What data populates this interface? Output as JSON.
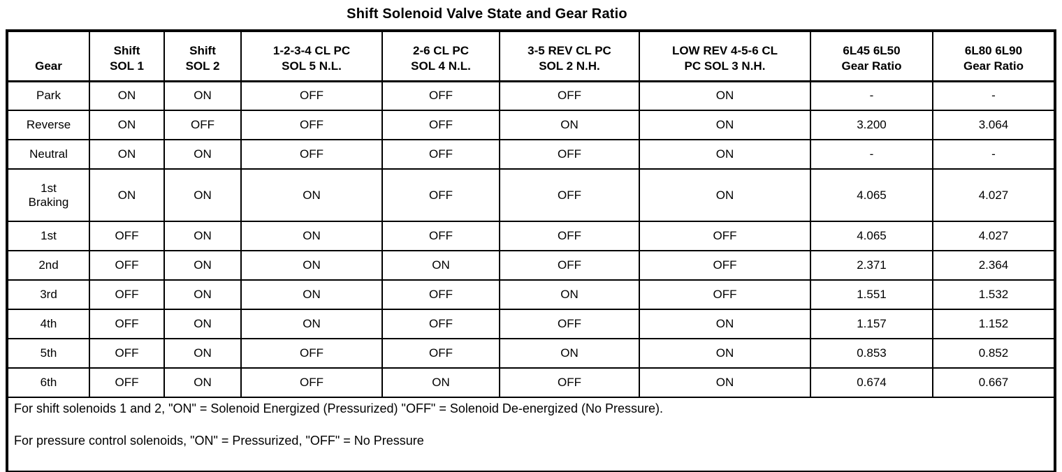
{
  "page": {
    "title": "Shift Solenoid Valve State and Gear Ratio",
    "background_color": "#ffffff",
    "text_color": "#000000",
    "border_color": "#000000"
  },
  "table": {
    "columns": [
      {
        "id": "gear",
        "label": "Gear"
      },
      {
        "id": "shift-sol-1",
        "label": "Shift\nSOL 1"
      },
      {
        "id": "shift-sol-2",
        "label": "Shift\nSOL 2"
      },
      {
        "id": "cl-pc-sol-5",
        "label": "1-2-3-4 CL PC\nSOL 5 N.L."
      },
      {
        "id": "cl-pc-sol-4",
        "label": "2-6 CL PC\nSOL 4 N.L."
      },
      {
        "id": "rev-cl-pc-sol-2",
        "label": "3-5 REV CL PC\nSOL 2 N.H."
      },
      {
        "id": "low-rev-pc-sol-3",
        "label": "LOW REV 4-5-6 CL\nPC SOL 3 N.H."
      },
      {
        "id": "ratio-6l45-6l50",
        "label": "6L45 6L50\nGear Ratio"
      },
      {
        "id": "ratio-6l80-6l90",
        "label": "6L80 6L90\nGear Ratio"
      }
    ],
    "rows": [
      {
        "gear": "Park",
        "values": [
          "ON",
          "ON",
          "OFF",
          "OFF",
          "OFF",
          "ON",
          "-",
          "-"
        ]
      },
      {
        "gear": "Reverse",
        "values": [
          "ON",
          "OFF",
          "OFF",
          "OFF",
          "ON",
          "ON",
          "3.200",
          "3.064"
        ]
      },
      {
        "gear": "Neutral",
        "values": [
          "ON",
          "ON",
          "OFF",
          "OFF",
          "OFF",
          "ON",
          "-",
          "-"
        ]
      },
      {
        "gear": "1st\nBraking",
        "values": [
          "ON",
          "ON",
          "ON",
          "OFF",
          "OFF",
          "ON",
          "4.065",
          "4.027"
        ]
      },
      {
        "gear": "1st",
        "values": [
          "OFF",
          "ON",
          "ON",
          "OFF",
          "OFF",
          "OFF",
          "4.065",
          "4.027"
        ]
      },
      {
        "gear": "2nd",
        "values": [
          "OFF",
          "ON",
          "ON",
          "ON",
          "OFF",
          "OFF",
          "2.371",
          "2.364"
        ]
      },
      {
        "gear": "3rd",
        "values": [
          "OFF",
          "ON",
          "ON",
          "OFF",
          "ON",
          "OFF",
          "1.551",
          "1.532"
        ]
      },
      {
        "gear": "4th",
        "values": [
          "OFF",
          "ON",
          "ON",
          "OFF",
          "OFF",
          "ON",
          "1.157",
          "1.152"
        ]
      },
      {
        "gear": "5th",
        "values": [
          "OFF",
          "ON",
          "OFF",
          "OFF",
          "ON",
          "ON",
          "0.853",
          "0.852"
        ]
      },
      {
        "gear": "6th",
        "values": [
          "OFF",
          "ON",
          "OFF",
          "ON",
          "OFF",
          "ON",
          "0.674",
          "0.667"
        ]
      }
    ],
    "notes": [
      "For shift solenoids 1 and 2, \"ON\" = Solenoid Energized (Pressurized) \"OFF\" = Solenoid De-energized (No Pressure).",
      "For pressure control solenoids, \"ON\" = Pressurized, \"OFF\" = No Pressure"
    ]
  }
}
